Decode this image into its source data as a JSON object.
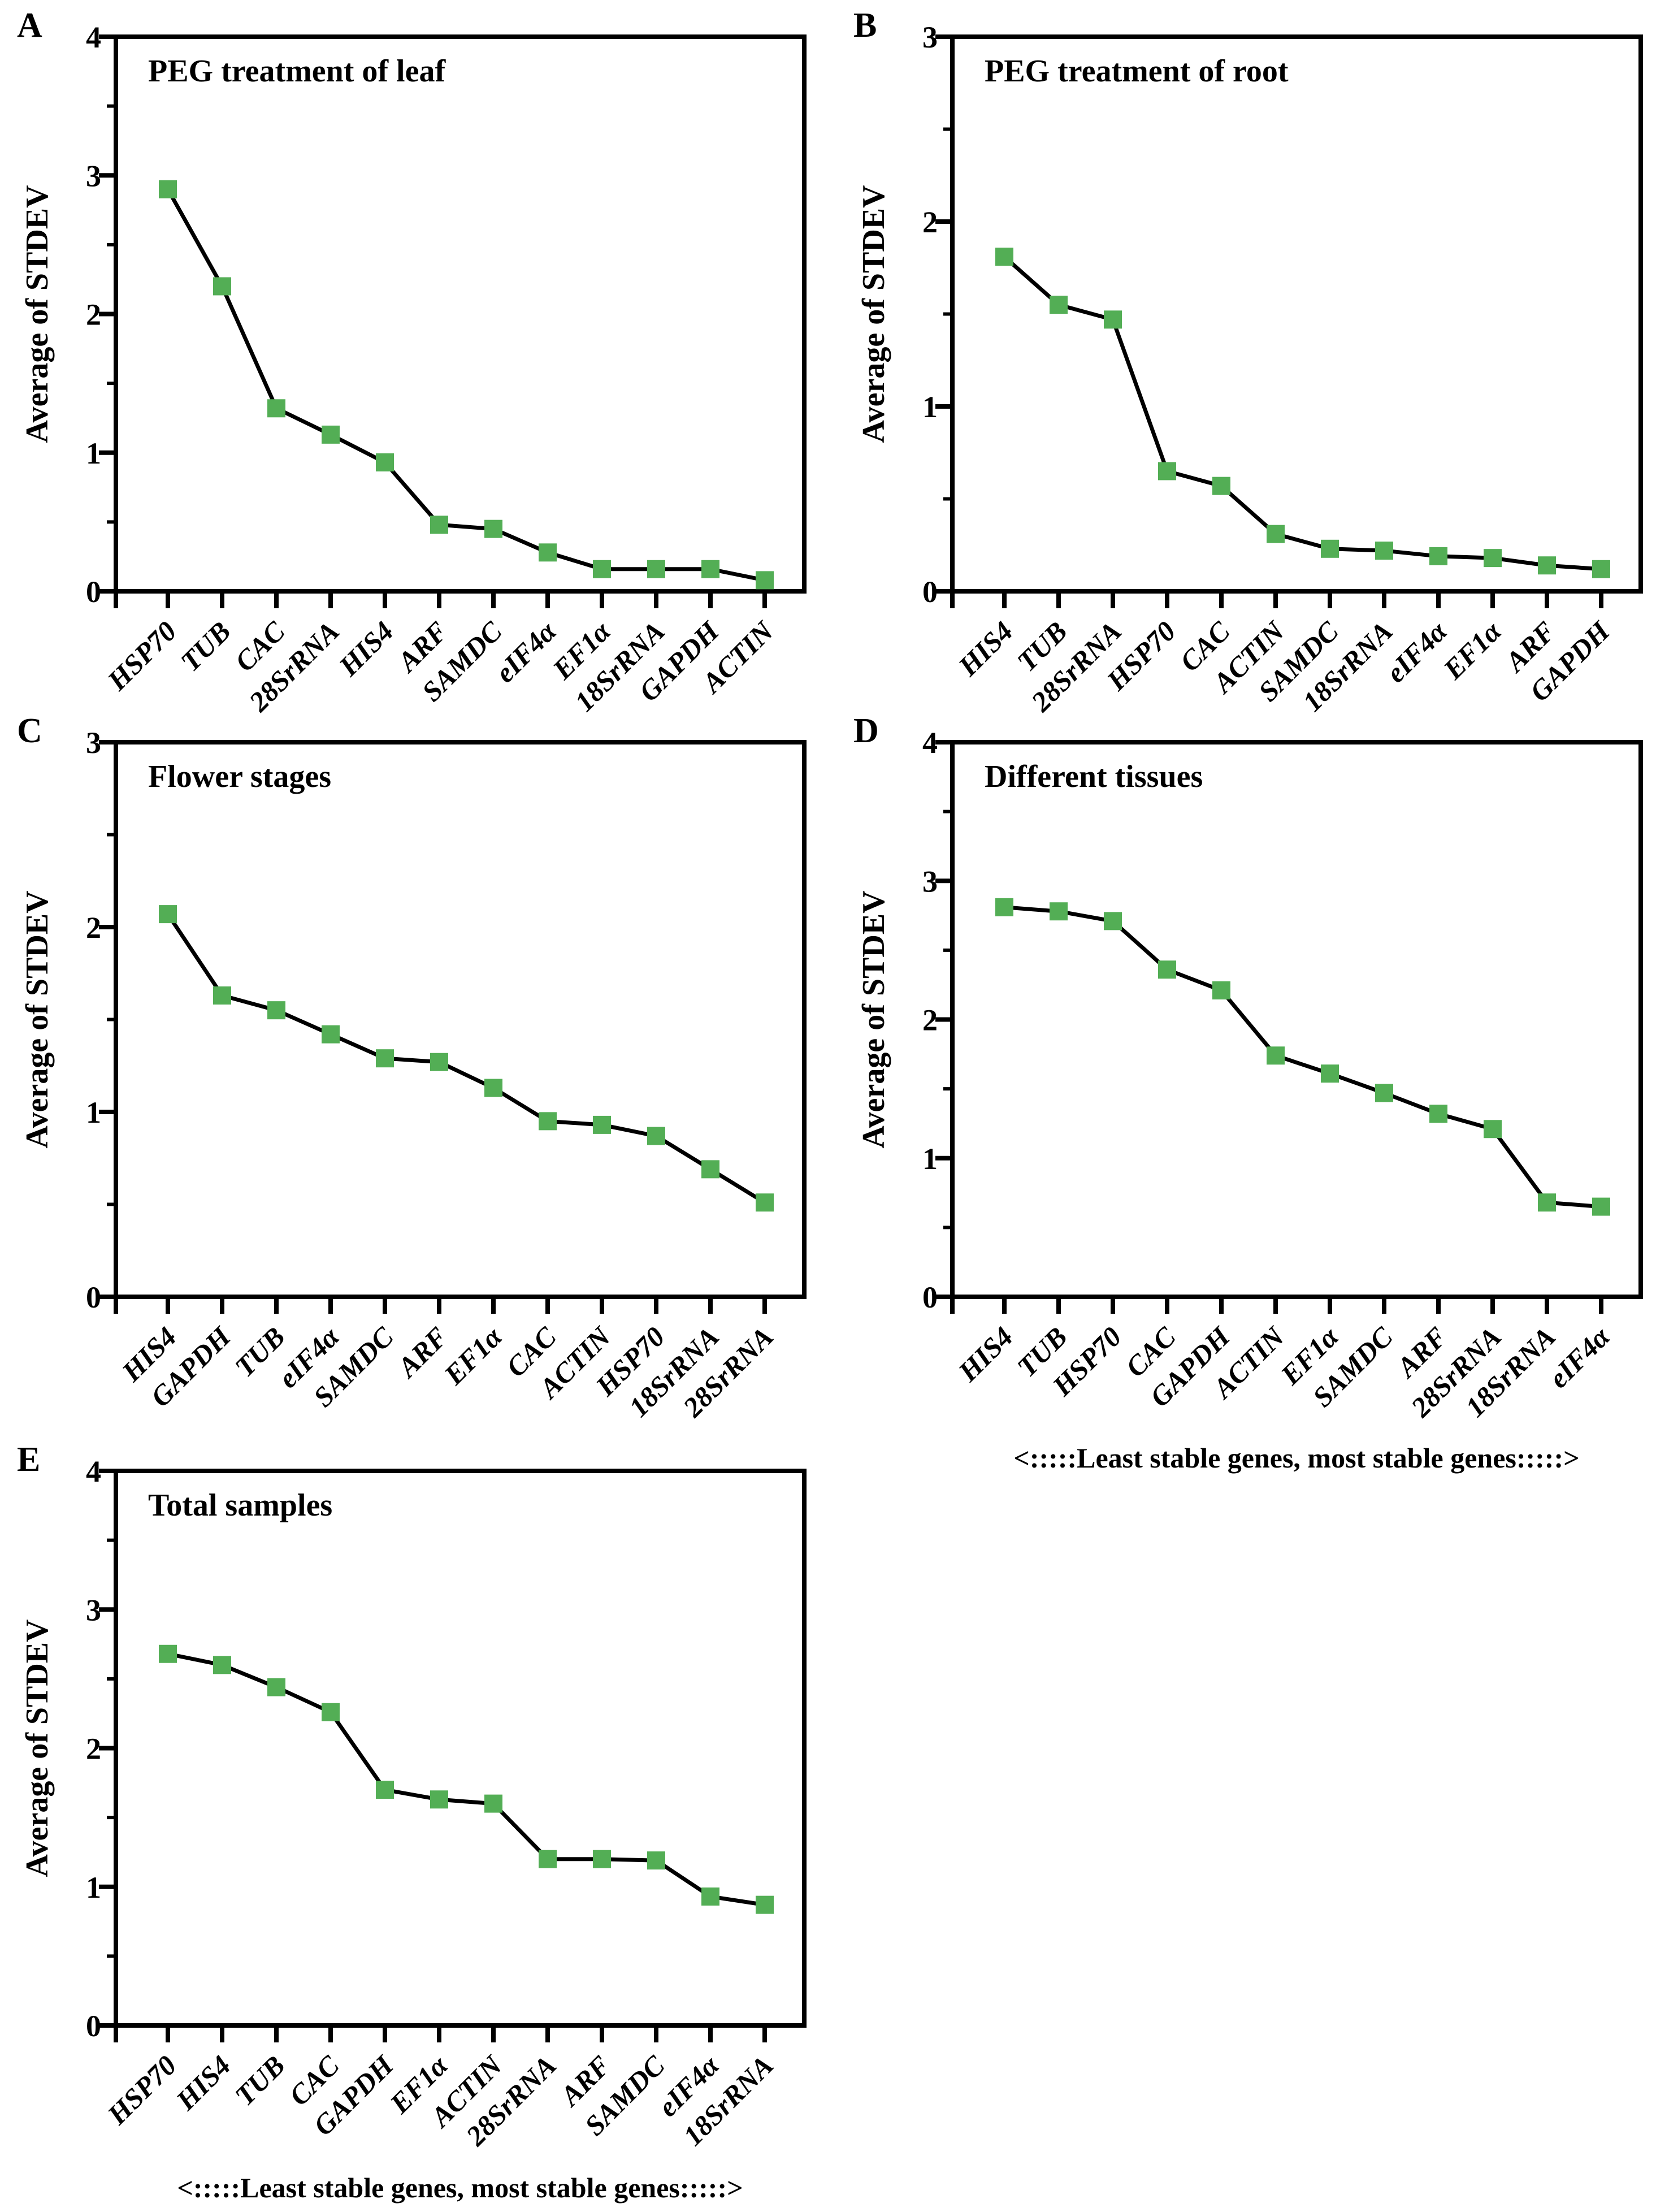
{
  "figure": {
    "marker_color": "#53ae55",
    "line_color": "#000000",
    "background_color": "#ffffff"
  },
  "chart_data": [
    {
      "type": "line",
      "panel_label": "A",
      "title": "PEG treatment of leaf",
      "ylabel": "Average of STDEV",
      "xlabel": "",
      "ylim": [
        0,
        4
      ],
      "yticks": [
        0,
        1,
        2,
        3,
        4
      ],
      "minor_tick_step": 0.5,
      "grid": "off",
      "legend": "none",
      "categories": [
        "HSP70",
        "TUB",
        "CAC",
        "28SrRNA",
        "HIS4",
        "ARF",
        "SAMDC",
        "eIF4α",
        "EF1α",
        "18SrRNA",
        "GAPDH",
        "ACTIN"
      ],
      "values": [
        2.9,
        2.2,
        1.32,
        1.13,
        0.93,
        0.48,
        0.45,
        0.28,
        0.16,
        0.16,
        0.16,
        0.08
      ],
      "caption": ""
    },
    {
      "type": "line",
      "panel_label": "B",
      "title": "PEG treatment of root",
      "ylabel": "Average of STDEV",
      "xlabel": "",
      "ylim": [
        0,
        3
      ],
      "yticks": [
        0,
        1,
        2,
        3
      ],
      "minor_tick_step": 0.5,
      "grid": "off",
      "legend": "none",
      "categories": [
        "HIS4",
        "TUB",
        "28SrRNA",
        "HSP70",
        "CAC",
        "ACTIN",
        "SAMDC",
        "18SrRNA",
        "eIF4α",
        "EF1α",
        "ARF",
        "GAPDH"
      ],
      "values": [
        1.81,
        1.55,
        1.47,
        0.65,
        0.57,
        0.31,
        0.23,
        0.22,
        0.19,
        0.18,
        0.14,
        0.12
      ],
      "caption": ""
    },
    {
      "type": "line",
      "panel_label": "C",
      "title": "Flower stages",
      "ylabel": "Average of STDEV",
      "xlabel": "",
      "ylim": [
        0,
        3
      ],
      "yticks": [
        0,
        1,
        2,
        3
      ],
      "minor_tick_step": 0.5,
      "grid": "off",
      "legend": "none",
      "categories": [
        "HIS4",
        "GAPDH",
        "TUB",
        "eIF4α",
        "SAMDC",
        "ARF",
        "EF1α",
        "CAC",
        "ACTIN",
        "HSP70",
        "18SrRNA",
        "28SrRNA"
      ],
      "values": [
        2.07,
        1.63,
        1.55,
        1.42,
        1.29,
        1.27,
        1.13,
        0.95,
        0.93,
        0.87,
        0.69,
        0.51
      ],
      "caption": ""
    },
    {
      "type": "line",
      "panel_label": "D",
      "title": "Different tissues",
      "ylabel": "Average of STDEV",
      "xlabel": "",
      "ylim": [
        0,
        4
      ],
      "yticks": [
        0,
        1,
        2,
        3,
        4
      ],
      "minor_tick_step": 0.5,
      "grid": "off",
      "legend": "none",
      "categories": [
        "HIS4",
        "TUB",
        "HSP70",
        "CAC",
        "GAPDH",
        "ACTIN",
        "EF1α",
        "SAMDC",
        "ARF",
        "28SrRNA",
        "18SrRNA",
        "eIF4α"
      ],
      "values": [
        2.81,
        2.78,
        2.71,
        2.36,
        2.21,
        1.74,
        1.61,
        1.47,
        1.32,
        1.21,
        0.68,
        0.65
      ],
      "caption": "<:::::Least stable genes, most stable genes:::::>"
    },
    {
      "type": "line",
      "panel_label": "E",
      "title": "Total samples",
      "ylabel": "Average of STDEV",
      "xlabel": "",
      "ylim": [
        0,
        4
      ],
      "yticks": [
        0,
        1,
        2,
        3,
        4
      ],
      "minor_tick_step": 0.5,
      "grid": "off",
      "legend": "none",
      "categories": [
        "HSP70",
        "HIS4",
        "TUB",
        "CAC",
        "GAPDH",
        "EF1α",
        "ACTIN",
        "28SrRNA",
        "ARF",
        "SAMDC",
        "eIF4α",
        "18SrRNA"
      ],
      "values": [
        2.68,
        2.6,
        2.44,
        2.26,
        1.7,
        1.63,
        1.6,
        1.2,
        1.2,
        1.19,
        0.93,
        0.87
      ],
      "caption": "<:::::Least stable genes, most stable genes:::::>"
    }
  ]
}
